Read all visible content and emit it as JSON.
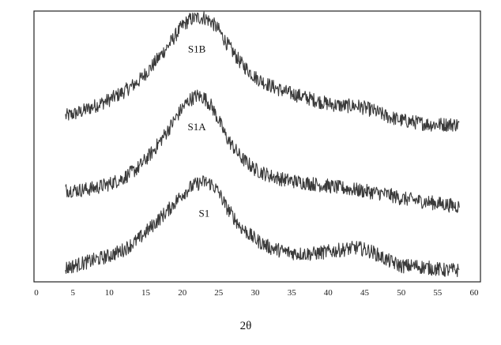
{
  "chart_data": {
    "type": "line",
    "title": "",
    "xlabel": "2θ",
    "ylabel": "",
    "xlim": [
      0,
      60
    ],
    "x_ticks": [
      "0",
      "5",
      "10",
      "15",
      "20",
      "25",
      "30",
      "35",
      "40",
      "45",
      "50",
      "55",
      "60"
    ],
    "grid": false,
    "legend": "none",
    "series": [
      {
        "name": "S1B",
        "color": "#3a3a3a",
        "x": [
          4,
          6,
          8,
          10,
          12,
          14,
          16,
          18,
          20,
          21,
          22,
          23,
          24,
          25,
          26,
          28,
          30,
          32,
          34,
          36,
          38,
          40,
          42,
          44,
          46,
          48,
          50,
          52,
          54,
          56,
          58
        ],
        "y": [
          0.78,
          0.8,
          0.83,
          0.86,
          0.9,
          0.95,
          1.03,
          1.12,
          1.22,
          1.25,
          1.26,
          1.26,
          1.24,
          1.2,
          1.14,
          1.04,
          0.97,
          0.93,
          0.9,
          0.88,
          0.86,
          0.84,
          0.83,
          0.83,
          0.81,
          0.78,
          0.76,
          0.75,
          0.74,
          0.74,
          0.74
        ]
      },
      {
        "name": "S1A",
        "color": "#3a3a3a",
        "x": [
          4,
          6,
          8,
          10,
          12,
          14,
          16,
          18,
          20,
          21,
          22,
          23,
          24,
          25,
          26,
          28,
          30,
          32,
          34,
          36,
          38,
          40,
          42,
          44,
          46,
          48,
          50,
          52,
          54,
          56,
          58
        ],
        "y": [
          0.42,
          0.42,
          0.43,
          0.45,
          0.48,
          0.53,
          0.61,
          0.71,
          0.82,
          0.86,
          0.88,
          0.87,
          0.83,
          0.76,
          0.68,
          0.58,
          0.52,
          0.49,
          0.47,
          0.46,
          0.45,
          0.44,
          0.43,
          0.42,
          0.41,
          0.4,
          0.38,
          0.37,
          0.36,
          0.35,
          0.34
        ]
      },
      {
        "name": "S1",
        "color": "#3a3a3a",
        "x": [
          4,
          6,
          8,
          10,
          12,
          14,
          16,
          18,
          20,
          21,
          22,
          23,
          24,
          25,
          26,
          28,
          30,
          32,
          34,
          36,
          38,
          40,
          42,
          44,
          46,
          48,
          50,
          52,
          54,
          56,
          58
        ],
        "y": [
          0.04,
          0.06,
          0.08,
          0.1,
          0.13,
          0.18,
          0.25,
          0.32,
          0.4,
          0.43,
          0.45,
          0.46,
          0.45,
          0.41,
          0.34,
          0.24,
          0.18,
          0.14,
          0.12,
          0.11,
          0.11,
          0.12,
          0.13,
          0.14,
          0.12,
          0.08,
          0.05,
          0.05,
          0.04,
          0.03,
          0.03
        ]
      }
    ]
  }
}
